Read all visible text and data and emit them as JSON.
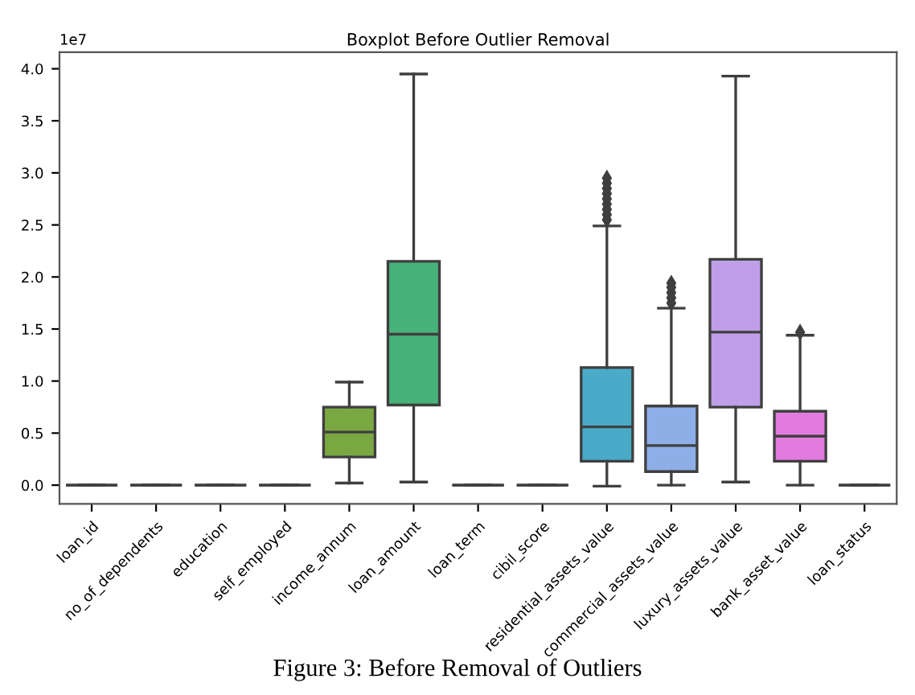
{
  "chart_data": {
    "type": "box",
    "title": "Boxplot Before Outlier Removal",
    "categories": [
      "loan_id",
      "no_of_dependents",
      "education",
      "self_employed",
      "income_annum",
      "loan_amount",
      "loan_term",
      "cibil_score",
      "residential_assets_value",
      "commercial_assets_value",
      "luxury_assets_value",
      "bank_asset_value",
      "loan_status"
    ],
    "boxes": [
      {
        "low": 0,
        "q1": 0,
        "median": 0,
        "q3": 0,
        "high": 0
      },
      {
        "low": 0,
        "q1": 0,
        "median": 0,
        "q3": 0,
        "high": 0
      },
      {
        "low": 0,
        "q1": 0,
        "median": 0,
        "q3": 0,
        "high": 0
      },
      {
        "low": 0,
        "q1": 0,
        "median": 0,
        "q3": 0,
        "high": 0
      },
      {
        "low": 0.02,
        "q1": 0.27,
        "median": 0.51,
        "q3": 0.75,
        "high": 0.99
      },
      {
        "low": 0.03,
        "q1": 0.77,
        "median": 1.45,
        "q3": 2.15,
        "high": 3.95
      },
      {
        "low": 0,
        "q1": 0,
        "median": 0,
        "q3": 0,
        "high": 0
      },
      {
        "low": 0,
        "q1": 0,
        "median": 0,
        "q3": 0,
        "high": 0
      },
      {
        "low": -0.01,
        "q1": 0.23,
        "median": 0.56,
        "q3": 1.13,
        "high": 2.49,
        "outliers": [
          2.55,
          2.6,
          2.65,
          2.7,
          2.75,
          2.8,
          2.85,
          2.9,
          2.95
        ]
      },
      {
        "low": 0,
        "q1": 0.13,
        "median": 0.38,
        "q3": 0.76,
        "high": 1.7,
        "outliers": [
          1.75,
          1.8,
          1.85,
          1.9,
          1.94
        ]
      },
      {
        "low": 0.03,
        "q1": 0.75,
        "median": 1.47,
        "q3": 2.17,
        "high": 3.93
      },
      {
        "low": 0,
        "q1": 0.23,
        "median": 0.47,
        "q3": 0.71,
        "high": 1.44,
        "outliers": [
          1.47
        ]
      },
      {
        "low": 0,
        "q1": 0,
        "median": 0,
        "q3": 0,
        "high": 0
      }
    ],
    "colors": [
      "#3f3f3f",
      "#3f3f3f",
      "#3f3f3f",
      "#3f3f3f",
      "#79a843",
      "#47b27a",
      "#3f3f3f",
      "#3f3f3f",
      "#4aabc9",
      "#8eaee8",
      "#bf9fe8",
      "#e27ae0",
      "#3f3f3f"
    ],
    "ylim": [
      -0.18,
      4.16
    ],
    "yticks": [
      {
        "value": 0,
        "label": "0.0"
      },
      0.5,
      {
        "value": 1,
        "label": "1.0"
      },
      1.5,
      {
        "value": 2,
        "label": "2.0"
      },
      2.5,
      {
        "value": 3,
        "label": "3.0"
      },
      3.5,
      {
        "value": 4,
        "label": "4.0"
      }
    ],
    "annotations": [
      "1e7",
      "Figure 3: Before Removal of Outliers"
    ]
  }
}
